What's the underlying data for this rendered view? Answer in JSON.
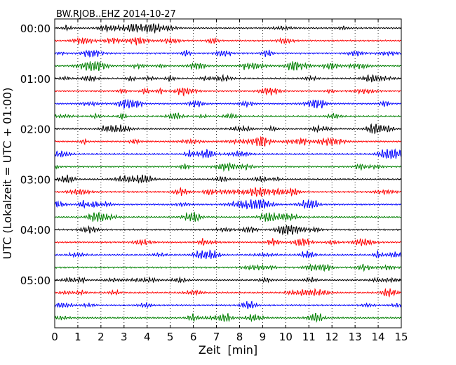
{
  "chart_data": {
    "type": "line",
    "title": "BW.RJOB..EHZ 2014-10-27",
    "xlabel": "Zeit  [min]",
    "ylabel": "UTC (Lokalzeit = UTC + 01:00)",
    "xlim": [
      0,
      15
    ],
    "x_ticks": [
      "0",
      "1",
      "2",
      "3",
      "4",
      "5",
      "6",
      "7",
      "8",
      "9",
      "10",
      "11",
      "12",
      "13",
      "14",
      "15"
    ],
    "y_ticks": [
      "00:00",
      "01:00",
      "02:00",
      "03:00",
      "04:00",
      "05:00"
    ],
    "grid": "vertical dotted",
    "trace_interval_min": 15,
    "trace_colors": [
      "#000000",
      "#ff0000",
      "#0000ff",
      "#008000"
    ],
    "series": [
      {
        "start": "00:00",
        "color": "#000000"
      },
      {
        "start": "00:15",
        "color": "#ff0000"
      },
      {
        "start": "00:30",
        "color": "#0000ff"
      },
      {
        "start": "00:45",
        "color": "#008000"
      },
      {
        "start": "01:00",
        "color": "#000000"
      },
      {
        "start": "01:15",
        "color": "#ff0000"
      },
      {
        "start": "01:30",
        "color": "#0000ff"
      },
      {
        "start": "01:45",
        "color": "#008000"
      },
      {
        "start": "02:00",
        "color": "#000000"
      },
      {
        "start": "02:15",
        "color": "#ff0000"
      },
      {
        "start": "02:30",
        "color": "#0000ff"
      },
      {
        "start": "02:45",
        "color": "#008000"
      },
      {
        "start": "03:00",
        "color": "#000000"
      },
      {
        "start": "03:15",
        "color": "#ff0000"
      },
      {
        "start": "03:30",
        "color": "#0000ff"
      },
      {
        "start": "03:45",
        "color": "#008000"
      },
      {
        "start": "04:00",
        "color": "#000000"
      },
      {
        "start": "04:15",
        "color": "#ff0000"
      },
      {
        "start": "04:30",
        "color": "#0000ff"
      },
      {
        "start": "04:45",
        "color": "#008000"
      },
      {
        "start": "05:00",
        "color": "#000000"
      },
      {
        "start": "05:15",
        "color": "#ff0000"
      },
      {
        "start": "05:30",
        "color": "#0000ff"
      },
      {
        "start": "05:45",
        "color": "#008000"
      }
    ]
  }
}
